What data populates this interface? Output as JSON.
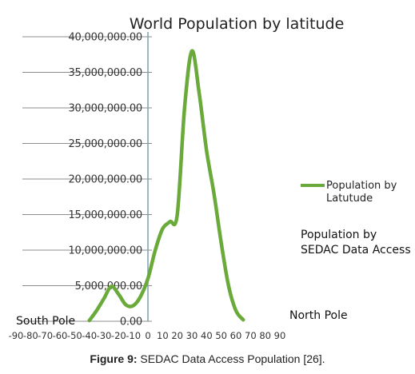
{
  "chart_data": {
    "type": "line",
    "title": "World Population by latitude",
    "x": [
      -90,
      -80,
      -70,
      -60,
      -50,
      -45,
      -40,
      -35,
      -30,
      -25,
      -20,
      -15,
      -10,
      -5,
      0,
      5,
      10,
      15,
      20,
      25,
      30,
      35,
      40,
      45,
      50,
      55,
      60,
      65,
      70,
      75,
      80,
      90
    ],
    "series": [
      {
        "name": "Population by Latutude",
        "values": [
          0,
          0,
          0,
          0,
          0,
          0,
          100000,
          1500000,
          3200000,
          4900000,
          3800000,
          2300000,
          2200000,
          3500000,
          6000000,
          10000000,
          13000000,
          14000000,
          15000000,
          30000000,
          38000000,
          32000000,
          24000000,
          18000000,
          11000000,
          5000000,
          1500000,
          200000,
          0,
          0,
          0,
          0
        ],
        "color": "#6aaa3a"
      }
    ],
    "xlim": [
      -90,
      90
    ],
    "ylim": [
      0,
      40000000
    ],
    "xticks": [
      "-90",
      "-80",
      "-70",
      "-60",
      "-50",
      "-40",
      "-30",
      "-20",
      "-10",
      "0",
      "10",
      "20",
      "30",
      "40",
      "50",
      "60",
      "70",
      "80",
      "90"
    ],
    "yticks": [
      "0.00",
      "5,000,000.00",
      "10,000,000.00",
      "15,000,000.00",
      "20,000,000.00",
      "25,000,000.00",
      "30,000,000.00",
      "35,000,000.00",
      "40,000,000.00"
    ],
    "grid": true,
    "legend_position": "right"
  },
  "legend": {
    "line1": "Population by",
    "line2": "Latutude"
  },
  "annotation": {
    "line1": "Population by",
    "line2": "SEDAC Data Access"
  },
  "pole_labels": {
    "south": "South Pole",
    "north": "North Pole"
  },
  "caption": {
    "label": "Figure 9:",
    "text": " SEDAC Data Access Population [26]."
  },
  "colors": {
    "series": "#6aaa3a",
    "grid": "#8c8c8c",
    "axis": "#7f9fb0"
  }
}
